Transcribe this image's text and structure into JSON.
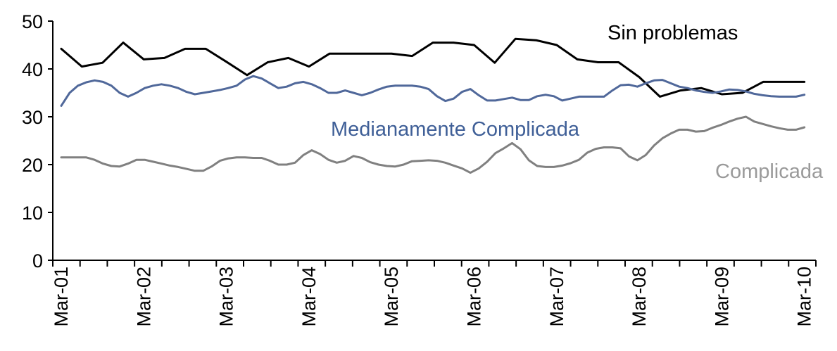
{
  "chart_data": {
    "type": "line",
    "title": "",
    "xlabel": "",
    "ylabel": "",
    "ylim": [
      0,
      50
    ],
    "y_ticks": [
      0,
      10,
      20,
      30,
      40,
      50
    ],
    "x_tick_labels": [
      "Mar-01",
      "Mar-02",
      "Mar-03",
      "Mar-04",
      "Mar-05",
      "Mar-06",
      "Mar-07",
      "Mar-08",
      "Mar-09",
      "Mar-10"
    ],
    "x_points_per_year": 10,
    "grid": false,
    "legend": "inline labels",
    "series": [
      {
        "name": "Sin problemas",
        "color": "#000000",
        "values": [
          44.2,
          40.5,
          41.3,
          45.5,
          42.0,
          42.3,
          44.2,
          44.2,
          41.5,
          38.7,
          41.4,
          42.3,
          40.5,
          43.2,
          43.2,
          43.2,
          43.2,
          42.7,
          45.5,
          45.5,
          45.0,
          41.3,
          46.3,
          46.0,
          45.0,
          42.0,
          41.4,
          41.4,
          38.3,
          34.2,
          35.5,
          36.0,
          34.7,
          35.0,
          37.3,
          37.3,
          37.3
        ]
      },
      {
        "name": "Medianamente Complicada",
        "color": "#50689a",
        "values": [
          32.3,
          35.0,
          36.5,
          37.2,
          37.6,
          37.3,
          36.5,
          35.0,
          34.2,
          35.0,
          36.0,
          36.5,
          36.8,
          36.5,
          36.0,
          35.2,
          34.7,
          35.0,
          35.3,
          35.6,
          36.0,
          36.5,
          37.8,
          38.5,
          38.0,
          37.0,
          36.0,
          36.3,
          37.0,
          37.3,
          36.8,
          36.0,
          35.0,
          35.0,
          35.5,
          35.0,
          34.5,
          35.0,
          35.7,
          36.3,
          36.5,
          36.5,
          36.5,
          36.3,
          35.8,
          34.3,
          33.3,
          33.8,
          35.2,
          35.8,
          34.5,
          33.4,
          33.4,
          33.7,
          34.0,
          33.5,
          33.5,
          34.3,
          34.6,
          34.3,
          33.4,
          33.8,
          34.2,
          34.2,
          34.2,
          34.2,
          35.5,
          36.6,
          36.7,
          36.3,
          37.0,
          37.6,
          37.7,
          37.0,
          36.3,
          36.0,
          35.5,
          35.2,
          35.0,
          35.3,
          35.7,
          35.6,
          35.3,
          34.8,
          34.5,
          34.3,
          34.2,
          34.2,
          34.2,
          34.6
        ]
      },
      {
        "name": "Complicada",
        "color": "#808080",
        "values": [
          21.5,
          21.5,
          21.5,
          21.5,
          21.0,
          20.2,
          19.7,
          19.6,
          20.2,
          21.0,
          21.0,
          20.6,
          20.2,
          19.8,
          19.5,
          19.1,
          18.7,
          18.7,
          19.6,
          20.8,
          21.3,
          21.5,
          21.5,
          21.4,
          21.4,
          20.8,
          20.0,
          20.0,
          20.4,
          22.0,
          23.0,
          22.2,
          21.0,
          20.4,
          20.8,
          21.8,
          21.4,
          20.5,
          20.0,
          19.7,
          19.6,
          20.0,
          20.7,
          20.8,
          20.9,
          20.8,
          20.4,
          19.8,
          19.2,
          18.3,
          19.2,
          20.6,
          22.4,
          23.4,
          24.5,
          23.2,
          20.9,
          19.7,
          19.5,
          19.5,
          19.8,
          20.3,
          21.0,
          22.5,
          23.3,
          23.6,
          23.6,
          23.4,
          21.7,
          20.9,
          22.0,
          24.0,
          25.5,
          26.5,
          27.3,
          27.3,
          26.9,
          27.0,
          27.7,
          28.3,
          29.0,
          29.6,
          30.0,
          29.0,
          28.5,
          28.0,
          27.6,
          27.3,
          27.3,
          27.8
        ]
      }
    ]
  }
}
